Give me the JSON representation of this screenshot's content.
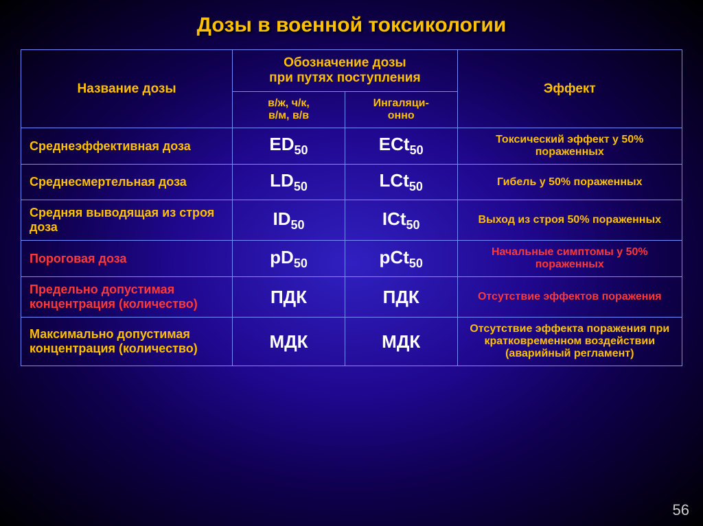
{
  "title": "Дозы в военной токсикологии",
  "page_number": "56",
  "colors": {
    "yellow": "#ffc000",
    "red": "#ff3838",
    "white": "#ffffff",
    "border": "#7b8aff"
  },
  "headers": {
    "name": "Название дозы",
    "designation_line1": "Обозначение дозы",
    "designation_line2": "при путях поступления",
    "effect": "Эффект",
    "route1_line1": "в/ж, ч/к,",
    "route1_line2": "в/м, в/в",
    "route2_line1": "Ингаляци-",
    "route2_line2": "онно"
  },
  "rows": [
    {
      "name": "Среднеэффективная доза",
      "name_color": "yellow",
      "sym1_pre": "ED",
      "sym1_sub": "50",
      "sym2_pre": "ECt",
      "sym2_sub": "50",
      "effect": "Токсический эффект у 50% пораженных",
      "effect_color": "yellow"
    },
    {
      "name": "Среднесмертельная доза",
      "name_color": "yellow",
      "sym1_pre": "LD",
      "sym1_sub": "50",
      "sym2_pre": "LCt",
      "sym2_sub": "50",
      "effect": "Гибель у 50% пораженных",
      "effect_color": "yellow"
    },
    {
      "name": "Средняя выводящая из строя доза",
      "name_color": "yellow",
      "sym1_pre": "ID",
      "sym1_sub": "50",
      "sym2_pre": "ICt",
      "sym2_sub": "50",
      "effect": "Выход из строя 50% пораженных",
      "effect_color": "yellow"
    },
    {
      "name": "Пороговая доза",
      "name_color": "red",
      "sym1_pre": "pD",
      "sym1_sub": "50",
      "sym2_pre": "pCt",
      "sym2_sub": "50",
      "effect": "Начальные симптомы у 50% пораженных",
      "effect_color": "red"
    },
    {
      "name": "Предельно допустимая концентрация (количество)",
      "name_color": "red",
      "sym1_pre": "ПДК",
      "sym1_sub": "",
      "sym2_pre": "ПДК",
      "sym2_sub": "",
      "effect": "Отсутствие эффектов поражения",
      "effect_color": "red"
    },
    {
      "name": "Максимально допустимая концентрация (количество)",
      "name_color": "yellow",
      "sym1_pre": "МДК",
      "sym1_sub": "",
      "sym2_pre": "МДК",
      "sym2_sub": "",
      "effect": "Отсутствие эффекта поражения при кратковременном воздействии (аварийный регламент)",
      "effect_color": "yellow"
    }
  ]
}
